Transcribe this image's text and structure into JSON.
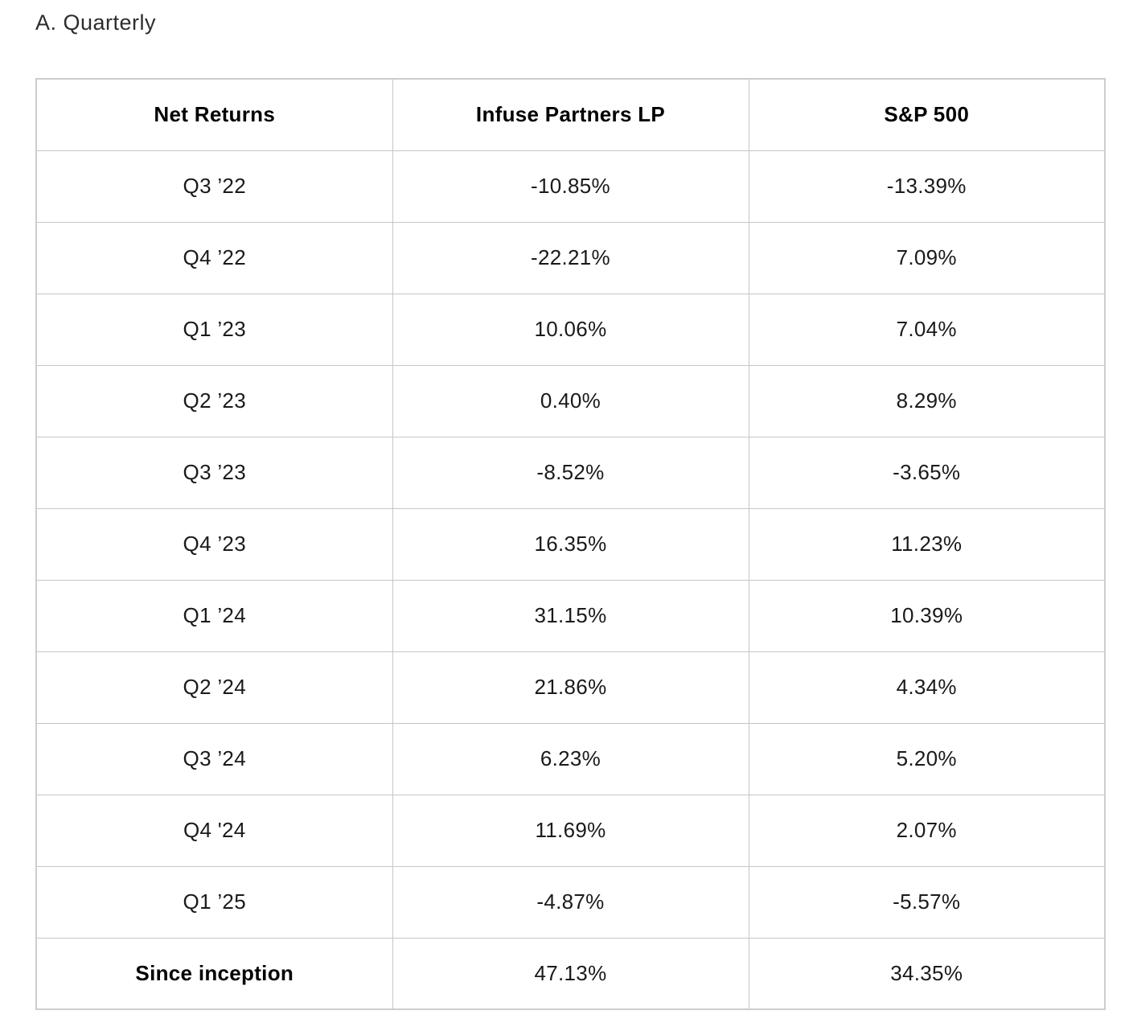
{
  "page": {
    "title": "A. Quarterly"
  },
  "table": {
    "header": [
      "Net Returns",
      "Infuse Partners LP",
      "S&P 500"
    ],
    "rows": [
      [
        "Q3 ’22",
        "-10.85%",
        "-13.39%"
      ],
      [
        "Q4 ’22",
        "-22.21%",
        "7.09%"
      ],
      [
        "Q1 ’23",
        "10.06%",
        "7.04%"
      ],
      [
        "Q2 ’23",
        "0.40%",
        "8.29%"
      ],
      [
        "Q3 ’23",
        "-8.52%",
        "-3.65%"
      ],
      [
        "Q4 ’23",
        "16.35%",
        "11.23%"
      ],
      [
        "Q1 ’24",
        "31.15%",
        "10.39%"
      ],
      [
        "Q2 ’24",
        "21.86%",
        "4.34%"
      ],
      [
        "Q3 ’24",
        "6.23%",
        "5.20%"
      ],
      [
        "Q4 '24",
        "11.69%",
        "2.07%"
      ],
      [
        "Q1 ’25",
        "-4.87%",
        "-5.57%"
      ],
      [
        "Since inception",
        "47.13%",
        "34.35%"
      ]
    ],
    "colors": {
      "border": "#c6c6c6",
      "outer_border": "#cdcdcd",
      "text": "#1a1a1a",
      "header_text": "#000000",
      "title_text": "#2d2d2d",
      "background": "#ffffff"
    }
  }
}
